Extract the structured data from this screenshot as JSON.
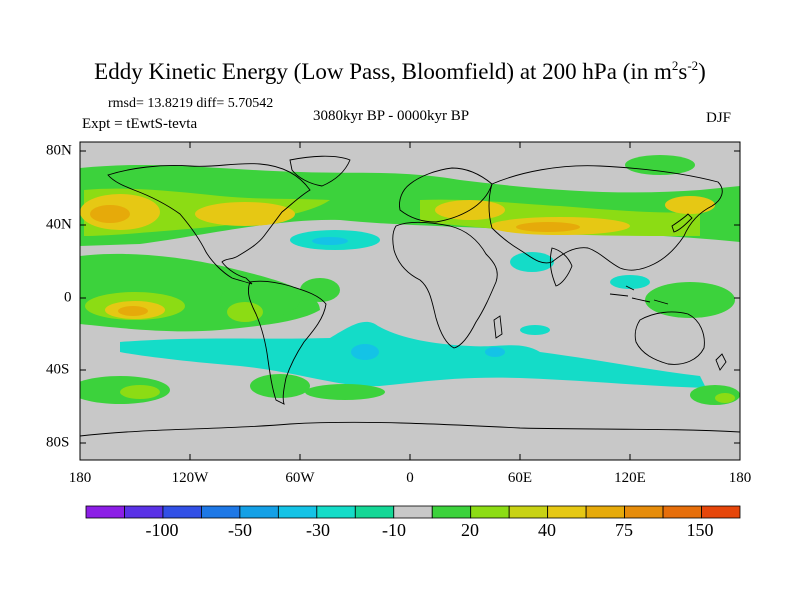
{
  "title": {
    "main": "Eddy Kinetic Energy (Low Pass, Bloomfield) at 200 hPa (in m",
    "sup1": "2",
    "mid": "s",
    "sup2": "-2",
    "end": ")"
  },
  "stats": "rmsd= 13.8219 diff= 5.70542",
  "experiment": "Expt = tEwtS-tevta",
  "period": "3080kyr BP - 0000kyr BP",
  "season": "DJF",
  "axes": {
    "x_ticks": [
      "180",
      "120W",
      "60W",
      "0",
      "60E",
      "120E",
      "180"
    ],
    "y_ticks": [
      "80N",
      "40N",
      "0",
      "40S",
      "80S"
    ]
  },
  "colorbar": {
    "colors": [
      "#8c1ee6",
      "#5a32e6",
      "#3250e6",
      "#1e78e6",
      "#14a0e6",
      "#14c3e6",
      "#14dcc8",
      "#14d796",
      "#c8c8c8",
      "#3cd23c",
      "#8cdc14",
      "#c8d214",
      "#e6c814",
      "#e6aa0a",
      "#e68c0a",
      "#e66e0a",
      "#e6460a"
    ],
    "labels": [
      "-100",
      "-50",
      "-30",
      "-10",
      "20",
      "40",
      "75",
      "150"
    ]
  },
  "map_colors": {
    "background": "#c8c8c8",
    "green": "#3cd23c",
    "lightgreen": "#8cdc14",
    "yellowgreen": "#c8d214",
    "yellow": "#e6c814",
    "orange": "#e6aa0a",
    "darkorange": "#e68c0a",
    "cyan": "#14dcc8",
    "teal": "#14c3e6",
    "blue": "#14a0e6",
    "coast": "#000000"
  }
}
